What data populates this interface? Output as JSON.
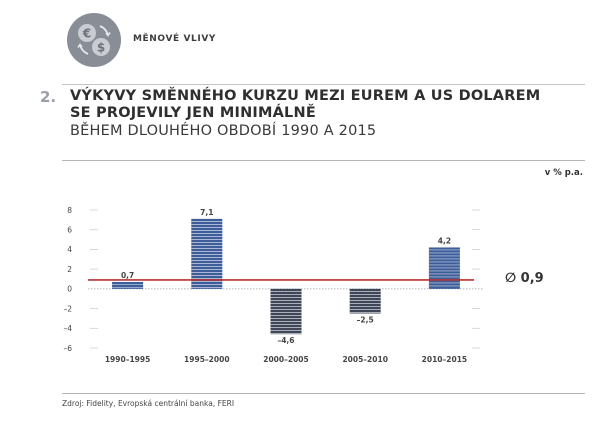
{
  "section": {
    "label": "MĚNOVÉ VLIVY",
    "icon": "currency-exchange-icon"
  },
  "figure": {
    "number": "2.",
    "title_line1": "VÝKYVY SMĚNNÉHO KURZU MEZI EUREM A US DOLAREM",
    "title_line2": "SE PROJEVILY JEN MINIMÁLNĚ",
    "subtitle": "BĚHEM DLOUHÉHO OBDOBÍ 1990 A 2015",
    "unit": "v % p.a.",
    "source": "Zdroj: Fidelity, Evropská centrální banka, FERI"
  },
  "average": {
    "label": "∅ 0,9",
    "value": 0.9
  },
  "colors": {
    "positive_bar": "#3d5d9b",
    "negative_bar": "#3e4658",
    "average_line": "#b83232",
    "grid": "#e2e2e2"
  },
  "chart_data": {
    "type": "bar",
    "categories": [
      "1990–1995",
      "1995–2000",
      "2000–2005",
      "2005–2010",
      "2010–2015"
    ],
    "values": [
      0.7,
      7.1,
      -4.6,
      -2.5,
      4.2
    ],
    "value_labels": [
      "0,7",
      "7,1",
      "–4,6",
      "–2,5",
      "4,2"
    ],
    "y_ticks": [
      8,
      6,
      4,
      2,
      0,
      -2,
      -4,
      -6
    ],
    "y_tick_labels": [
      "8",
      "6",
      "4",
      "2",
      "0",
      "–2",
      "–4",
      "–6"
    ],
    "ylim": [
      -6,
      8
    ],
    "reference_line": 0.9,
    "ylabel": "v % p.a.",
    "grid": true
  }
}
